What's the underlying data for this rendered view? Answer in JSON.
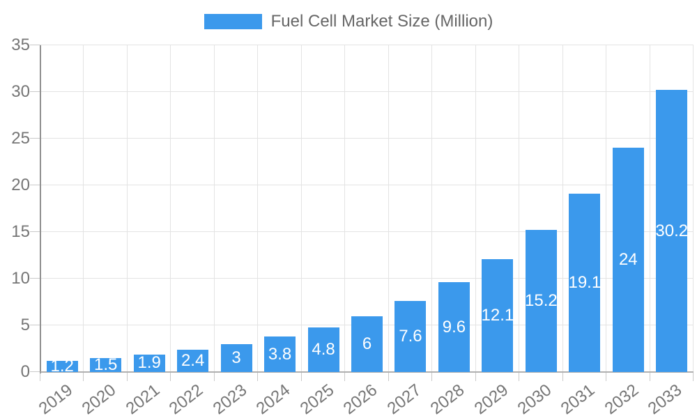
{
  "legend": {
    "label": "Fuel Cell Market Size (Million)"
  },
  "chart_data": {
    "type": "bar",
    "title": "",
    "legend_entries": [
      "Fuel Cell Market Size (Million)"
    ],
    "legend_position": "top",
    "categories": [
      "2019",
      "2020",
      "2021",
      "2022",
      "2023",
      "2024",
      "2025",
      "2026",
      "2027",
      "2028",
      "2029",
      "2030",
      "2031",
      "2032",
      "2033"
    ],
    "series": [
      {
        "name": "Fuel Cell Market Size (Million)",
        "values": [
          1.2,
          1.5,
          1.9,
          2.4,
          3,
          3.8,
          4.8,
          6,
          7.6,
          9.6,
          12.1,
          15.2,
          19.1,
          24,
          30.2
        ]
      }
    ],
    "value_labels": [
      "1.2",
      "1.5",
      "1.9",
      "2.4",
      "3",
      "3.8",
      "4.8",
      "6",
      "7.6",
      "9.6",
      "12.1",
      "15.2",
      "19.1",
      "24",
      "30.2"
    ],
    "xlabel": "",
    "ylabel": "",
    "ylim": [
      0,
      35
    ],
    "yticks": [
      0,
      5,
      10,
      15,
      20,
      25,
      30,
      35
    ],
    "grid": true,
    "x_tick_rotation_deg": -38,
    "colors": {
      "bar": "#3b99ec",
      "value_label": "#ffffff",
      "axis_text": "#757575",
      "legend_text": "#666666",
      "gridline": "#e3e3e3",
      "tick": "#c9c9c9",
      "x_axis_line": "#b0b0b0",
      "y_axis_line": "#909090"
    }
  }
}
